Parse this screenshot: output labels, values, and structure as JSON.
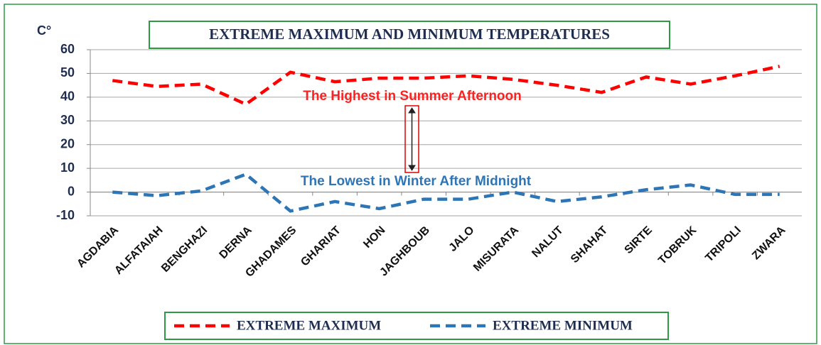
{
  "chart_data": {
    "type": "line",
    "title": "EXTREME MAXIMUM AND MINIMUM TEMPERATURES",
    "y_label": "C°",
    "annotations": [
      "The Highest in Summer Afternoon",
      "The Lowest in Winter After Midnight"
    ],
    "categories": [
      "AGDABIA",
      "ALFATAIAH",
      "BENGHAZI",
      "DERNA",
      "GHADAMES",
      "GHARIAT",
      "HON",
      "JAGHBOUB",
      "JALO",
      "MISURATA",
      "NALUT",
      "SHAHAT",
      "SIRTE",
      "TOBRUK",
      "TRIPOLI",
      "ZWARA"
    ],
    "series": [
      {
        "name": "EXTREME MAXIMUM",
        "color": "#ff0000",
        "values": [
          47,
          44.5,
          45.5,
          37,
          50.5,
          46.5,
          48,
          48,
          49,
          47.5,
          45,
          42,
          48.5,
          45.5,
          49,
          53
        ]
      },
      {
        "name": "EXTREME MINIMUM",
        "color": "#2e75b6",
        "values": [
          0,
          -1.5,
          0.5,
          7.5,
          -8,
          -4,
          -7,
          -3,
          -3,
          0,
          -4,
          -2,
          1,
          3,
          -1,
          -1
        ]
      }
    ],
    "ylim": [
      -10,
      60
    ],
    "yticks": [
      -10,
      0,
      10,
      20,
      30,
      40,
      50,
      60
    ],
    "grid": true,
    "legend": "bottom"
  }
}
